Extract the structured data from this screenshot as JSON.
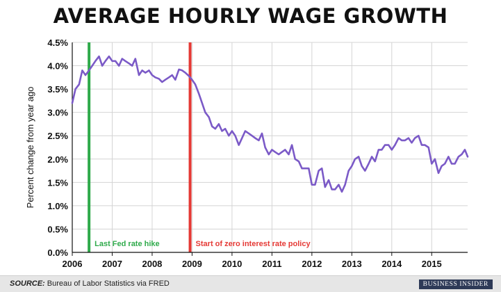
{
  "chart_data": {
    "type": "line",
    "title": "AVERAGE HOURLY WAGE GROWTH",
    "ylabel": "Percent change from year ago",
    "xlabel": "",
    "xlim": [
      2006.0,
      2015.9
    ],
    "ylim": [
      0,
      4.5
    ],
    "x_ticks": [
      "2006",
      "2007",
      "2008",
      "2009",
      "2010",
      "2011",
      "2012",
      "2013",
      "2014",
      "2015"
    ],
    "y_ticks": [
      "0.0%",
      "0.5%",
      "1.0%",
      "1.5%",
      "2.0%",
      "2.5%",
      "3.0%",
      "3.5%",
      "4.0%",
      "4.5%"
    ],
    "grid": true,
    "line_color": "#7b5ac7",
    "series": [
      {
        "x": [
          2006.0,
          2006.08,
          2006.17,
          2006.25,
          2006.33,
          2006.42,
          2006.5,
          2006.58,
          2006.67,
          2006.75,
          2006.83,
          2006.92,
          2007.0,
          2007.08,
          2007.17,
          2007.25,
          2007.33,
          2007.42,
          2007.5,
          2007.58,
          2007.67,
          2007.75,
          2007.83,
          2007.92,
          2008.0,
          2008.08,
          2008.17,
          2008.25,
          2008.33,
          2008.42,
          2008.5,
          2008.58,
          2008.67,
          2008.75,
          2008.83,
          2008.92,
          2009.0,
          2009.08,
          2009.17,
          2009.25,
          2009.33,
          2009.42,
          2009.5,
          2009.58,
          2009.67,
          2009.75,
          2009.83,
          2009.92,
          2010.0,
          2010.08,
          2010.17,
          2010.25,
          2010.33,
          2010.42,
          2010.5,
          2010.58,
          2010.67,
          2010.75,
          2010.83,
          2010.92,
          2011.0,
          2011.08,
          2011.17,
          2011.25,
          2011.33,
          2011.42,
          2011.5,
          2011.58,
          2011.67,
          2011.75,
          2011.83,
          2011.92,
          2012.0,
          2012.08,
          2012.17,
          2012.25,
          2012.33,
          2012.42,
          2012.5,
          2012.58,
          2012.67,
          2012.75,
          2012.83,
          2012.92,
          2013.0,
          2013.08,
          2013.17,
          2013.25,
          2013.33,
          2013.42,
          2013.5,
          2013.58,
          2013.67,
          2013.75,
          2013.83,
          2013.92,
          2014.0,
          2014.08,
          2014.17,
          2014.25,
          2014.33,
          2014.42,
          2014.5,
          2014.58,
          2014.67,
          2014.75,
          2014.83,
          2014.92,
          2015.0,
          2015.08,
          2015.17,
          2015.25,
          2015.33,
          2015.42,
          2015.5,
          2015.58,
          2015.67,
          2015.75,
          2015.83,
          2015.9
        ],
        "y": [
          3.2,
          3.5,
          3.6,
          3.9,
          3.8,
          3.9,
          4.0,
          4.1,
          4.2,
          4.0,
          4.1,
          4.2,
          4.1,
          4.1,
          4.0,
          4.15,
          4.1,
          4.05,
          4.0,
          4.15,
          3.8,
          3.9,
          3.85,
          3.9,
          3.8,
          3.75,
          3.72,
          3.65,
          3.7,
          3.75,
          3.8,
          3.7,
          3.92,
          3.9,
          3.85,
          3.78,
          3.7,
          3.6,
          3.4,
          3.2,
          3.0,
          2.9,
          2.7,
          2.65,
          2.75,
          2.6,
          2.65,
          2.5,
          2.6,
          2.5,
          2.3,
          2.45,
          2.6,
          2.55,
          2.5,
          2.45,
          2.4,
          2.55,
          2.25,
          2.1,
          2.2,
          2.15,
          2.1,
          2.15,
          2.2,
          2.1,
          2.3,
          2.0,
          1.95,
          1.8,
          1.8,
          1.8,
          1.45,
          1.45,
          1.75,
          1.8,
          1.4,
          1.55,
          1.35,
          1.35,
          1.45,
          1.3,
          1.45,
          1.75,
          1.85,
          2.0,
          2.05,
          1.85,
          1.75,
          1.9,
          2.05,
          1.95,
          2.2,
          2.2,
          2.3,
          2.3,
          2.2,
          2.3,
          2.45,
          2.4,
          2.4,
          2.45,
          2.35,
          2.45,
          2.5,
          2.3,
          2.3,
          2.25,
          1.9,
          2.0,
          1.7,
          1.85,
          1.9,
          2.05,
          1.9,
          1.9,
          2.05,
          2.1,
          2.2,
          2.05
        ]
      }
    ],
    "annotations": [
      {
        "x": 2006.42,
        "label": "Last Fed rate hike",
        "color": "#2eaa4a"
      },
      {
        "x": 2008.95,
        "label": "Start of zero interest rate policy",
        "color": "#e53935"
      }
    ]
  },
  "footer": {
    "source_label": "SOURCE:",
    "source_text": " Bureau of Labor Statistics via FRED",
    "brand": "BUSINESS INSIDER"
  }
}
